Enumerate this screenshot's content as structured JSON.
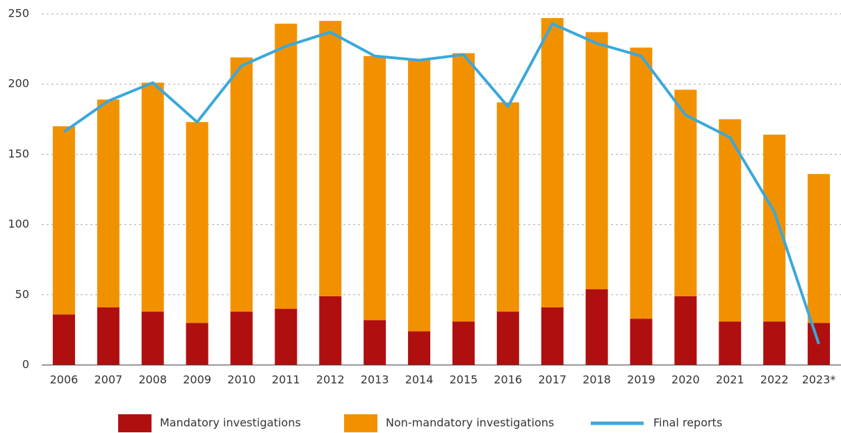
{
  "chart_data": {
    "type": "bar",
    "categories": [
      "2006",
      "2007",
      "2008",
      "2009",
      "2010",
      "2011",
      "2012",
      "2013",
      "2014",
      "2015",
      "2016",
      "2017",
      "2018",
      "2019",
      "2020",
      "2021",
      "2022",
      "2023*"
    ],
    "series": [
      {
        "name": "Mandatory investigations",
        "color": "#b00f0f",
        "values": [
          36,
          41,
          38,
          30,
          38,
          40,
          49,
          32,
          24,
          31,
          38,
          41,
          54,
          33,
          49,
          31,
          31,
          30
        ]
      },
      {
        "name": "Non-mandatory investigations",
        "color": "#f29100",
        "values": [
          134,
          148,
          163,
          143,
          181,
          203,
          196,
          188,
          194,
          191,
          149,
          206,
          183,
          193,
          147,
          144,
          133,
          106
        ]
      },
      {
        "name": "Final reports",
        "color": "#3aa8dc",
        "type": "line",
        "values": [
          166,
          188,
          201,
          173,
          213,
          227,
          237,
          220,
          217,
          221,
          184,
          243,
          229,
          220,
          178,
          162,
          109,
          15
        ]
      }
    ],
    "stacked": true,
    "ylim": [
      0,
      250
    ],
    "yticks": [
      0,
      50,
      100,
      150,
      200,
      250
    ],
    "grid": true
  }
}
